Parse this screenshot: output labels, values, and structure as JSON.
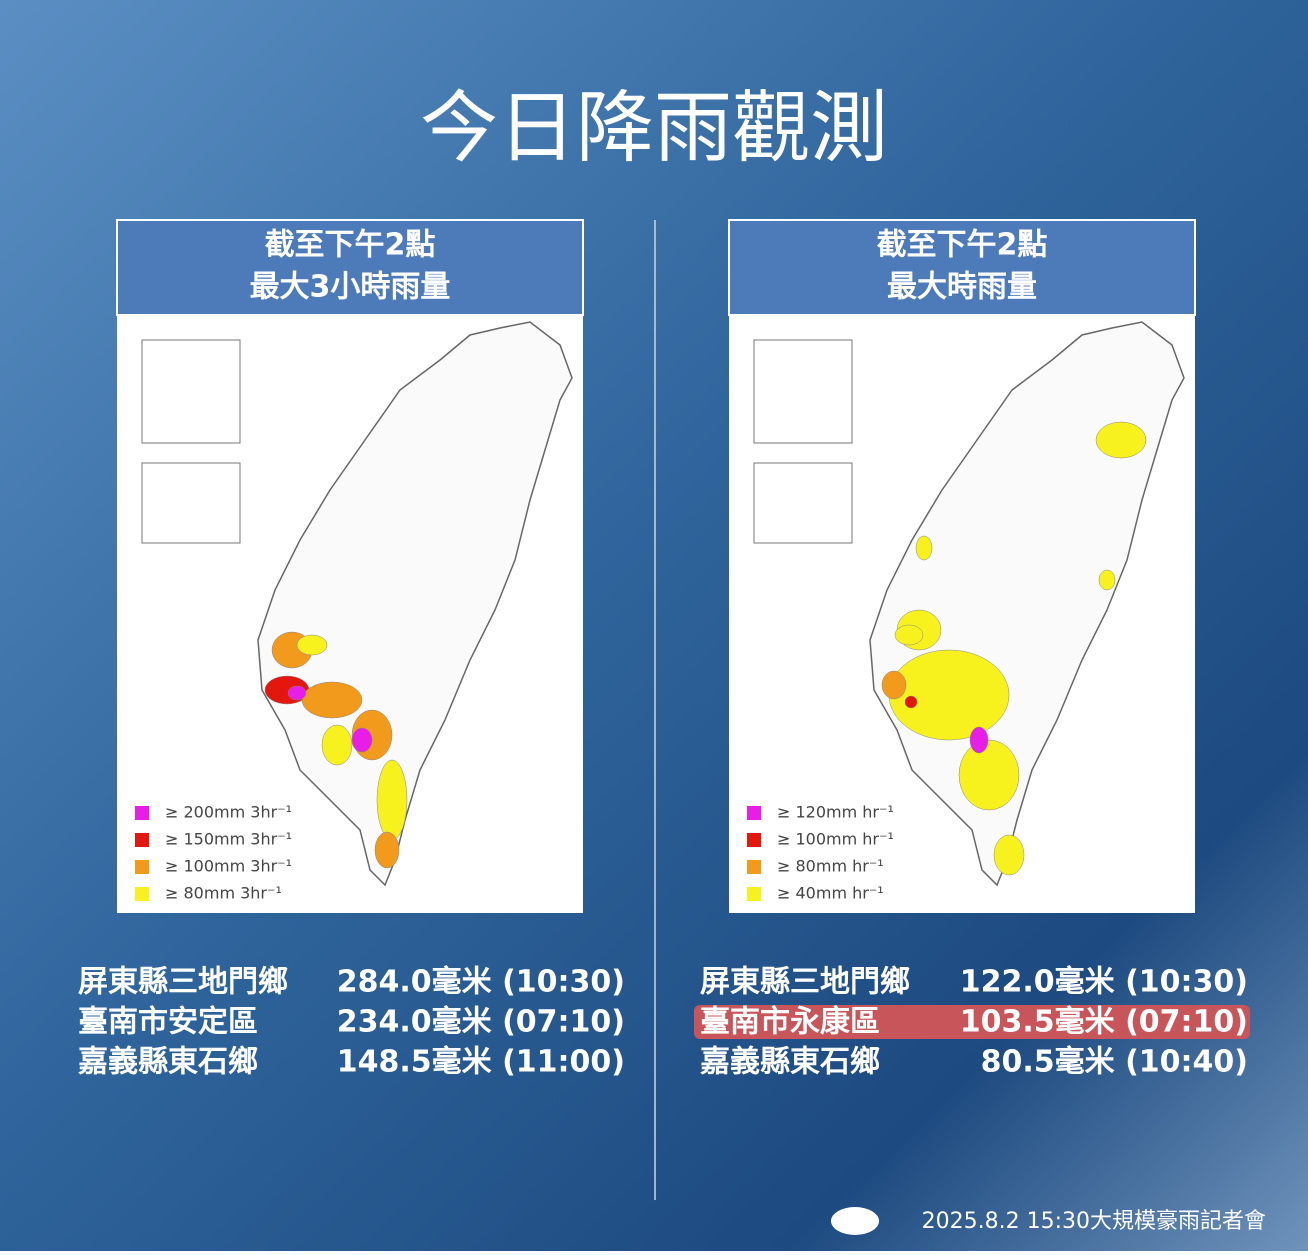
{
  "title": "今日降雨觀測",
  "panels": [
    {
      "header": [
        "截至下午2點",
        "最大3小時雨量"
      ],
      "legend": [
        {
          "label": "≥ 200mm 3hr⁻¹",
          "color": "#e81ee8"
        },
        {
          "label": "≥ 150mm 3hr⁻¹",
          "color": "#e3170d"
        },
        {
          "label": "≥ 100mm 3hr⁻¹",
          "color": "#f29a1c"
        },
        {
          "label": "≥ 80mm 3hr⁻¹",
          "color": "#f7f21e"
        }
      ],
      "stations": [
        {
          "name": "屏東縣三地門鄉",
          "amount": "284.0毫米 (10:30)"
        },
        {
          "name": "臺南市安定區",
          "amount": "234.0毫米 (07:10)"
        },
        {
          "name": "嘉義縣東石鄉",
          "amount": "148.5毫米 (11:00)"
        }
      ]
    },
    {
      "header": [
        "截至下午2點",
        "最大時雨量"
      ],
      "legend": [
        {
          "label": "≥ 120mm hr⁻¹",
          "color": "#e81ee8"
        },
        {
          "label": "≥ 100mm hr⁻¹",
          "color": "#e3170d"
        },
        {
          "label": "≥ 80mm hr⁻¹",
          "color": "#f29a1c"
        },
        {
          "label": "≥ 40mm hr⁻¹",
          "color": "#f7f21e"
        }
      ],
      "stations": [
        {
          "name": "屏東縣三地門鄉",
          "amount": "122.0毫米 (10:30)"
        },
        {
          "name": "臺南市永康區",
          "amount": "103.5毫米 (07:10)",
          "highlighted": true
        },
        {
          "name": "嘉義縣東石鄉",
          "amount": "80.5毫米 (10:40)"
        }
      ]
    }
  ],
  "footer": "2025.8.2 15:30大規模豪雨記者會"
}
